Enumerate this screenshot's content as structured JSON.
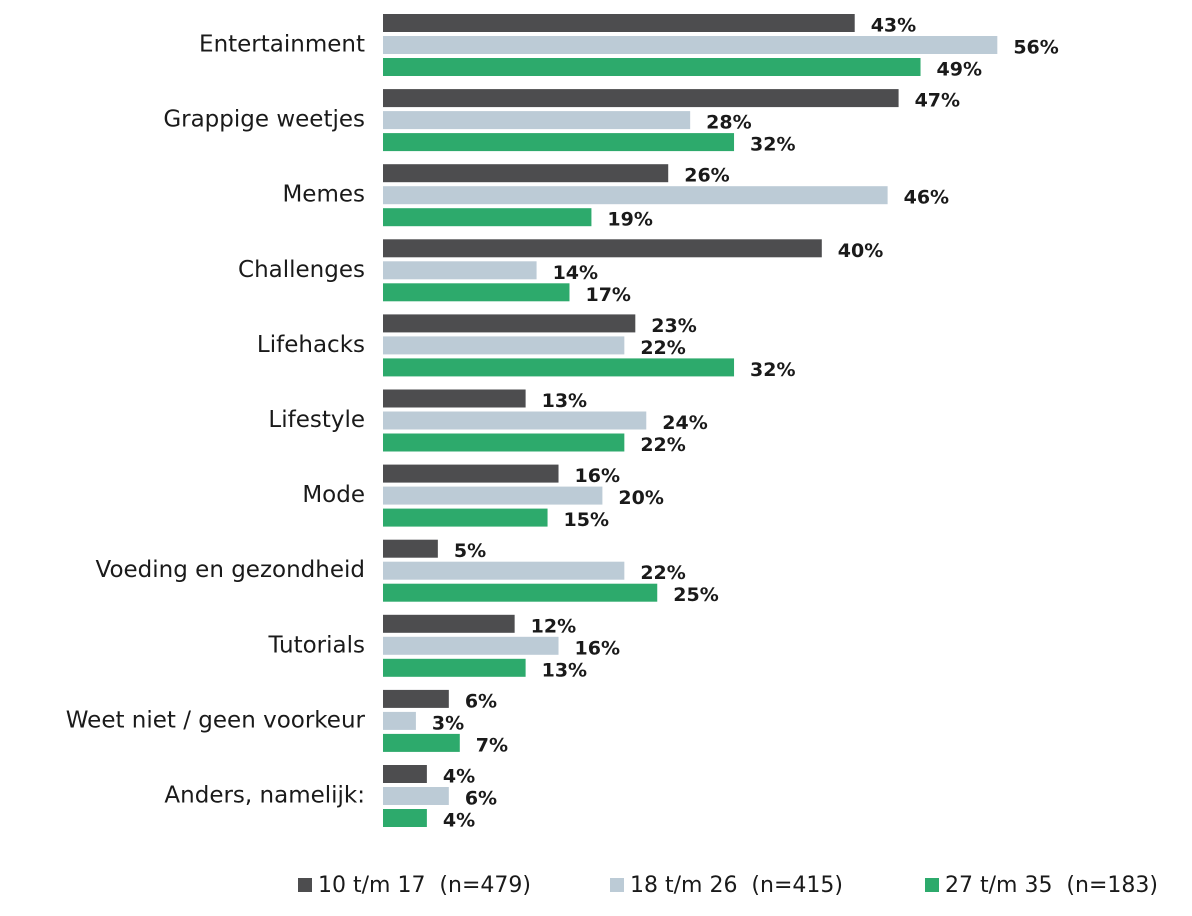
{
  "chart_data": {
    "type": "hbar",
    "categories": [
      "Entertainment",
      "Grappige weetjes",
      "Memes",
      "Challenges",
      "Lifehacks",
      "Lifestyle",
      "Mode",
      "Voeding en gezondheid",
      "Tutorials",
      "Weet niet / geen voorkeur",
      "Anders, namelijk:"
    ],
    "series": [
      {
        "name": "10 t/m 17  (n=479)",
        "color": "#4d4d4f",
        "values": [
          43,
          47,
          26,
          40,
          23,
          13,
          16,
          5,
          12,
          6,
          4
        ],
        "value_labels": [
          "43%",
          "47%",
          "26%",
          "40%",
          "23%",
          "13%",
          "16%",
          "5%",
          "12%",
          "6%",
          "4%"
        ]
      },
      {
        "name": "18 t/m 26  (n=415)",
        "color": "#bccbd6",
        "values": [
          56,
          28,
          46,
          14,
          22,
          24,
          20,
          22,
          16,
          3,
          6
        ],
        "value_labels": [
          "56%",
          "28%",
          "46%",
          "14%",
          "22%",
          "24%",
          "20%",
          "22%",
          "16%",
          "3%",
          "6%"
        ]
      },
      {
        "name": "27 t/m 35  (n=183)",
        "color": "#2daa6c",
        "values": [
          49,
          32,
          19,
          17,
          32,
          22,
          15,
          25,
          13,
          7,
          4
        ],
        "value_labels": [
          "49%",
          "32%",
          "19%",
          "17%",
          "32%",
          "22%",
          "15%",
          "25%",
          "13%",
          "7%",
          "4%"
        ]
      }
    ],
    "legend": "bottom"
  }
}
